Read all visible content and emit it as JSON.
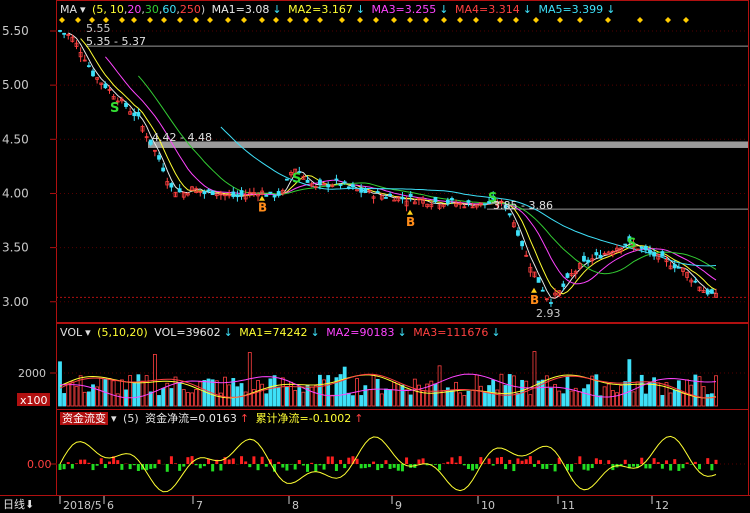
{
  "price_header": {
    "indicator": "MA",
    "params_prefix": "(5,",
    "params": [
      "10",
      "20",
      "30",
      "60",
      "250"
    ],
    "params_suffix": ")",
    "ma1": "MA1=3.08",
    "ma2": "MA2=3.167",
    "ma3": "MA3=3.255",
    "ma4": "MA4=3.314",
    "ma5": "MA5=3.399"
  },
  "vol_header": {
    "indicator": "VOL",
    "params": "(5,10,20)",
    "vol": "VOL=39602",
    "ma1": "MA1=74242",
    "ma2": "MA2=90183",
    "ma3": "MA3=111676"
  },
  "flow_header": {
    "indicator": "资金流变",
    "param": "(5)",
    "net": "资金净流=0.0163",
    "cum": "累计净流=-0.1002"
  },
  "price_axis_labels": [
    "5.50",
    "5.00",
    "4.50",
    "4.00",
    "3.50",
    "3.00"
  ],
  "vol_axis_labels": [
    "2000",
    "x100"
  ],
  "flow_axis_labels": [
    "0.00"
  ],
  "period_label": "日线",
  "x_labels": [
    "2018/5",
    "6",
    "7",
    "8",
    "9",
    "10",
    "11",
    "12"
  ],
  "annotations": {
    "high_label": "5.55",
    "low_label": "2.93",
    "zones": [
      "5.35 - 5.37",
      "4.42 - 4.48",
      "3.85 - 3.86"
    ],
    "buy": "B",
    "sell": "S"
  },
  "colors": {
    "up": "#ff4040",
    "down": "#3ee0f8",
    "ma5": "#e8e8e8",
    "ma10": "#ffff33",
    "ma20": "#ff44ff",
    "ma30": "#33cc33",
    "ma60": "#3ee0f8",
    "ma250": "#ff4040",
    "axis": "#b01010",
    "grid": "#550000"
  },
  "chart_data": {
    "type": "candlestick",
    "x_labels": [
      "2018/5",
      "6",
      "7",
      "8",
      "9",
      "10",
      "11",
      "12"
    ],
    "ylim": [
      2.85,
      5.62
    ],
    "close_approx": [
      5.5,
      5.45,
      5.3,
      5.1,
      5.0,
      4.9,
      4.8,
      4.7,
      4.5,
      4.3,
      4.05,
      4.0,
      4.05,
      4.0,
      4.02,
      3.98,
      3.97,
      4.0,
      4.02,
      3.98,
      4.0,
      4.25,
      4.15,
      4.05,
      4.08,
      4.1,
      4.05,
      4.02,
      4.0,
      3.98,
      3.97,
      3.95,
      3.95,
      3.93,
      3.92,
      3.92,
      3.9,
      3.9,
      3.9,
      3.92,
      3.9,
      3.7,
      3.4,
      3.2,
      3.0,
      3.1,
      3.25,
      3.35,
      3.4,
      3.45,
      3.5,
      3.55,
      3.5,
      3.45,
      3.4,
      3.35,
      3.3,
      3.2,
      3.1,
      3.05
    ],
    "latest": {
      "MA1": 3.08,
      "MA2": 3.167,
      "MA3": 3.255,
      "MA4": 3.314,
      "MA5": 3.399
    },
    "volume_latest": 39602,
    "volume_ma": {
      "MA1": 74242,
      "MA2": 90183,
      "MA3": 111676
    },
    "fund_flow": {
      "net": 0.0163,
      "cumulative": -0.1002
    }
  }
}
